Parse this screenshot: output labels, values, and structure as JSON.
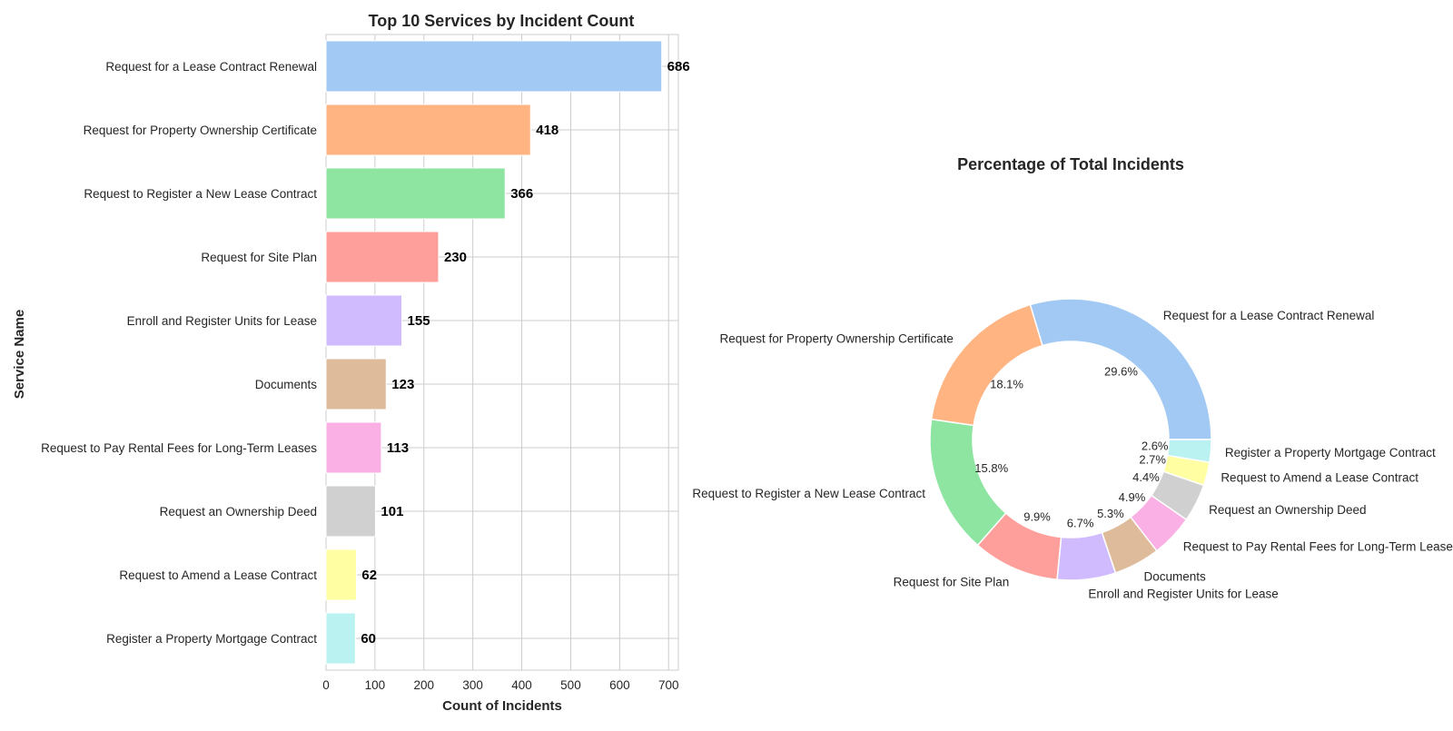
{
  "chart_data": [
    {
      "type": "bar",
      "orientation": "horizontal",
      "title": "Top 10 Services by Incident Count",
      "xlabel": "Count of Incidents",
      "ylabel": "Service Name",
      "xlim": [
        0,
        720
      ],
      "xticks": [
        0,
        100,
        200,
        300,
        400,
        500,
        600,
        700
      ],
      "grid": true,
      "categories": [
        "Register a Property Mortgage Contract",
        "Request to Amend a Lease Contract",
        "Request an Ownership Deed",
        "Request to Pay Rental Fees for Long-Term Leases",
        "Documents",
        "Enroll and Register Units for Lease",
        "Request for Site Plan",
        "Request to Register a New Lease Contract",
        "Request for Property Ownership Certificate",
        "Request for a Lease Contract Renewal"
      ],
      "values": [
        60,
        62,
        101,
        113,
        123,
        155,
        230,
        366,
        418,
        686
      ],
      "colors": [
        "#b9f2f0",
        "#fffea3",
        "#d0d0d0",
        "#fab0e4",
        "#debb9b",
        "#d0bbff",
        "#ff9f9b",
        "#8de5a1",
        "#ffb482",
        "#a1c9f4"
      ]
    },
    {
      "type": "pie",
      "donut": true,
      "title": "Percentage of Total Incidents",
      "labels": [
        "Request for a Lease Contract Renewal",
        "Request for Property Ownership Certificate",
        "Request to Register a New Lease Contract",
        "Request for Site Plan",
        "Enroll and Register Units for Lease",
        "Documents",
        "Request to Pay Rental Fees for Long-Term Leases",
        "Request an Ownership Deed",
        "Request to Amend a Lease Contract",
        "Register a Property Mortgage Contract"
      ],
      "values": [
        686,
        418,
        366,
        230,
        155,
        123,
        113,
        101,
        62,
        60
      ],
      "percent_labels": [
        "29.6%",
        "18.1%",
        "15.8%",
        "9.9%",
        "6.7%",
        "5.3%",
        "4.9%",
        "4.4%",
        "2.7%",
        "2.6%"
      ],
      "colors": [
        "#a1c9f4",
        "#ffb482",
        "#8de5a1",
        "#ff9f9b",
        "#d0bbff",
        "#debb9b",
        "#fab0e4",
        "#d0d0d0",
        "#fffea3",
        "#b9f2f0"
      ]
    }
  ]
}
